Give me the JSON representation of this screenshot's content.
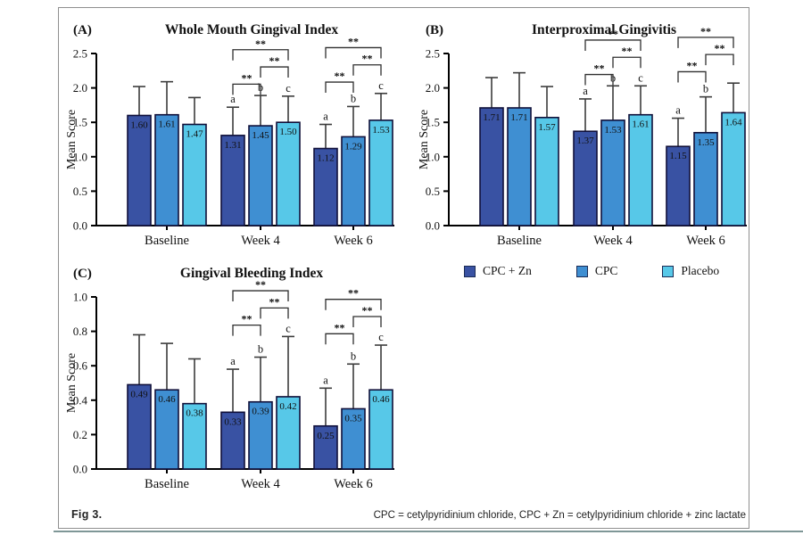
{
  "figure": {
    "fig_label": "Fig 3.",
    "footnote": "CPC = cetylpyridinium chloride, CPC + Zn = cetylpyridinium chloride + zinc lactate"
  },
  "legend": {
    "position": "center-right, below panel B",
    "items": [
      {
        "label": "CPC + Zn",
        "color": "#3952a3"
      },
      {
        "label": "CPC",
        "color": "#3f8fd2"
      },
      {
        "label": "Placebo",
        "color": "#57c8e8"
      }
    ]
  },
  "chart_data": [
    {
      "id": "A",
      "panel_label": "(A)",
      "type": "bar",
      "title": "Whole Mouth Gingival Index",
      "xlabel": "",
      "ylabel": "Mean Score",
      "ylim": [
        0,
        2.5
      ],
      "yticks": [
        0.0,
        0.5,
        1.0,
        1.5,
        2.0,
        2.5
      ],
      "grid": false,
      "categories": [
        "Baseline",
        "Week 4",
        "Week 6"
      ],
      "series": [
        {
          "name": "CPC + Zn",
          "values": [
            1.6,
            1.31,
            1.12
          ],
          "error_top_values": [
            2.02,
            1.72,
            1.47
          ]
        },
        {
          "name": "CPC",
          "values": [
            1.61,
            1.45,
            1.29
          ],
          "error_top_values": [
            2.09,
            1.89,
            1.73
          ]
        },
        {
          "name": "Placebo",
          "values": [
            1.47,
            1.5,
            1.53
          ],
          "error_top_values": [
            1.86,
            1.88,
            1.92
          ]
        }
      ],
      "letters": [
        [
          "",
          "",
          ""
        ],
        [
          "a",
          "b",
          "c"
        ],
        [
          "a",
          "b",
          "c"
        ]
      ],
      "significance": [
        {
          "cluster": 1,
          "comparisons": [
            {
              "between": [
                0,
                1
              ],
              "label": "**"
            },
            {
              "between": [
                1,
                2
              ],
              "label": "**"
            },
            {
              "between": [
                0,
                2
              ],
              "label": "**"
            }
          ]
        },
        {
          "cluster": 2,
          "comparisons": [
            {
              "between": [
                0,
                1
              ],
              "label": "**"
            },
            {
              "between": [
                1,
                2
              ],
              "label": "**"
            },
            {
              "between": [
                0,
                2
              ],
              "label": "**"
            }
          ]
        }
      ]
    },
    {
      "id": "B",
      "panel_label": "(B)",
      "type": "bar",
      "title": "Interproximal Gingivitis",
      "xlabel": "",
      "ylabel": "Mean Score",
      "ylim": [
        0,
        2.5
      ],
      "yticks": [
        0.0,
        0.5,
        1.0,
        1.5,
        2.0,
        2.5
      ],
      "grid": false,
      "categories": [
        "Baseline",
        "Week 4",
        "Week 6"
      ],
      "series": [
        {
          "name": "CPC + Zn",
          "values": [
            1.71,
            1.37,
            1.15
          ],
          "error_top_values": [
            2.15,
            1.84,
            1.56
          ]
        },
        {
          "name": "CPC",
          "values": [
            1.71,
            1.53,
            1.35
          ],
          "error_top_values": [
            2.22,
            2.03,
            1.87
          ]
        },
        {
          "name": "Placebo",
          "values": [
            1.57,
            1.61,
            1.64
          ],
          "error_top_values": [
            2.02,
            2.03,
            2.07
          ]
        }
      ],
      "letters": [
        [
          "",
          "",
          ""
        ],
        [
          "a",
          "b",
          "c"
        ],
        [
          "a",
          "b",
          ""
        ]
      ],
      "significance": [
        {
          "cluster": 1,
          "comparisons": [
            {
              "between": [
                0,
                1
              ],
              "label": "**"
            },
            {
              "between": [
                1,
                2
              ],
              "label": "**"
            },
            {
              "between": [
                0,
                2
              ],
              "label": "**"
            }
          ]
        },
        {
          "cluster": 2,
          "comparisons": [
            {
              "between": [
                0,
                1
              ],
              "label": "**"
            },
            {
              "between": [
                1,
                2
              ],
              "label": "**"
            },
            {
              "between": [
                0,
                2
              ],
              "label": "**"
            }
          ]
        }
      ]
    },
    {
      "id": "C",
      "panel_label": "(C)",
      "type": "bar",
      "title": "Gingival Bleeding Index",
      "xlabel": "",
      "ylabel": "Mean Score",
      "ylim": [
        0,
        1.0
      ],
      "yticks": [
        0.0,
        0.2,
        0.4,
        0.6,
        0.8,
        1.0
      ],
      "grid": false,
      "categories": [
        "Baseline",
        "Week 4",
        "Week 6"
      ],
      "series": [
        {
          "name": "CPC + Zn",
          "values": [
            0.49,
            0.33,
            0.25
          ],
          "error_top_values": [
            0.78,
            0.58,
            0.47
          ]
        },
        {
          "name": "CPC",
          "values": [
            0.46,
            0.39,
            0.35
          ],
          "error_top_values": [
            0.73,
            0.65,
            0.61
          ]
        },
        {
          "name": "Placebo",
          "values": [
            0.38,
            0.42,
            0.46
          ],
          "error_top_values": [
            0.64,
            0.77,
            0.72
          ]
        }
      ],
      "letters": [
        [
          "",
          "",
          ""
        ],
        [
          "a",
          "b",
          "c"
        ],
        [
          "a",
          "b",
          "c"
        ]
      ],
      "significance": [
        {
          "cluster": 1,
          "comparisons": [
            {
              "between": [
                0,
                1
              ],
              "label": "**"
            },
            {
              "between": [
                1,
                2
              ],
              "label": "**"
            },
            {
              "between": [
                0,
                2
              ],
              "label": "**"
            }
          ]
        },
        {
          "cluster": 2,
          "comparisons": [
            {
              "between": [
                0,
                1
              ],
              "label": "**"
            },
            {
              "between": [
                1,
                2
              ],
              "label": "**"
            },
            {
              "between": [
                0,
                2
              ],
              "label": "**"
            }
          ]
        }
      ]
    }
  ]
}
